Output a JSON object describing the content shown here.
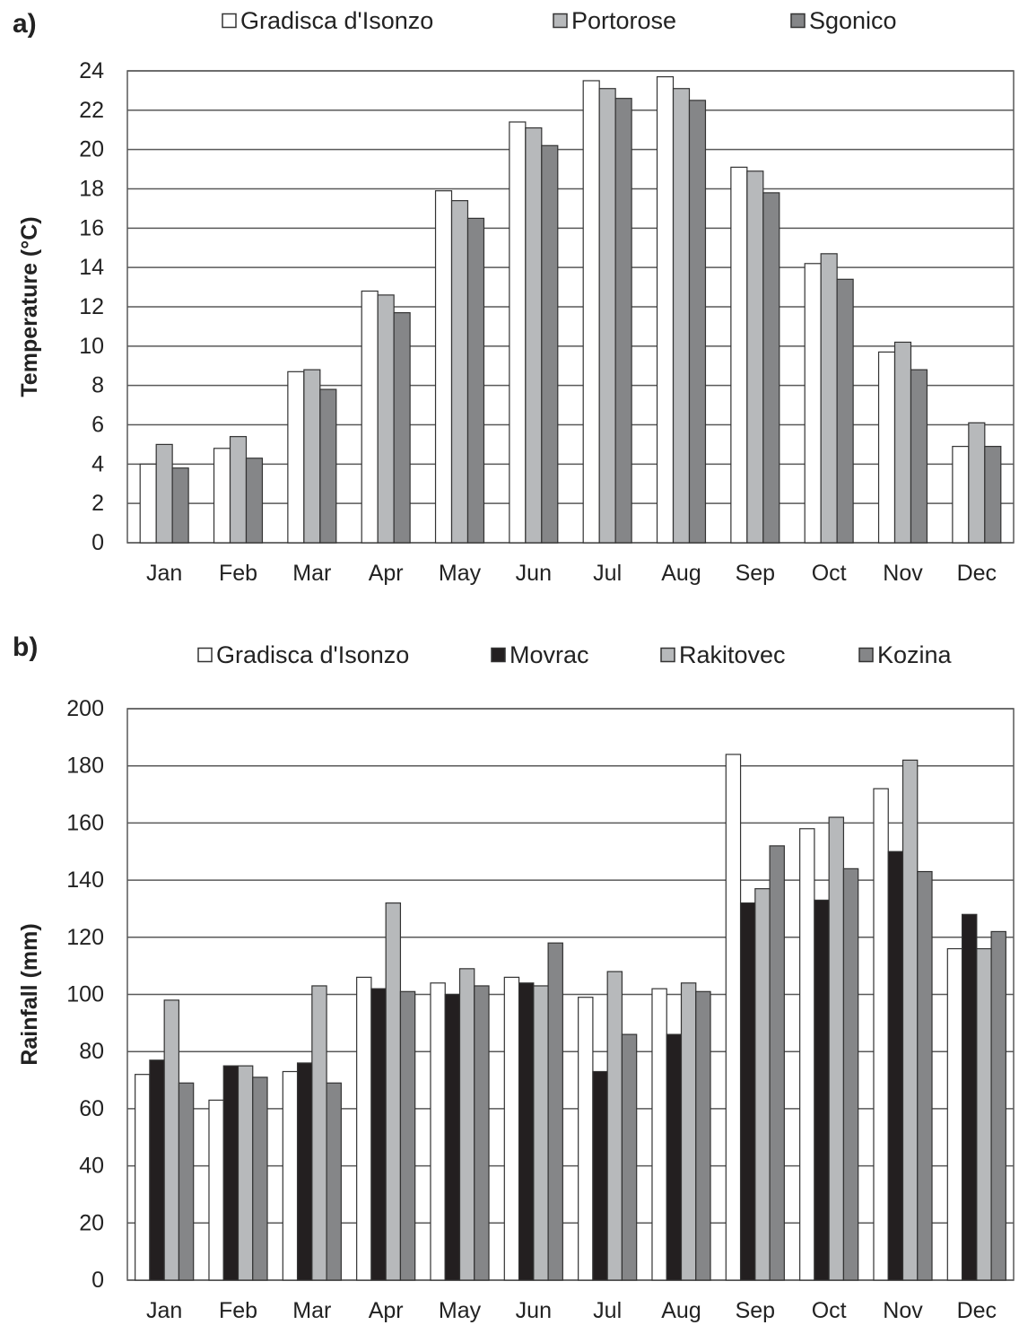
{
  "chart_data": [
    {
      "panel_label": "a)",
      "type": "bar",
      "categories": [
        "Jan",
        "Feb",
        "Mar",
        "Apr",
        "May",
        "Jun",
        "Jul",
        "Aug",
        "Sep",
        "Oct",
        "Nov",
        "Dec"
      ],
      "series": [
        {
          "name": "Gradisca d'Isonzo",
          "color": "#ffffff",
          "values": [
            4.0,
            4.8,
            8.7,
            12.8,
            17.9,
            21.4,
            23.5,
            23.7,
            19.1,
            14.2,
            9.7,
            4.9
          ]
        },
        {
          "name": "Portorose",
          "color": "#b7b9bb",
          "values": [
            5.0,
            5.4,
            8.8,
            12.6,
            17.4,
            21.1,
            23.1,
            23.1,
            18.9,
            14.7,
            10.2,
            6.1
          ]
        },
        {
          "name": "Sgonico",
          "color": "#858688",
          "values": [
            3.8,
            4.3,
            7.8,
            11.7,
            16.5,
            20.2,
            22.6,
            22.5,
            17.8,
            13.4,
            8.8,
            4.9
          ]
        }
      ],
      "xlabel": "",
      "ylabel": "Temperature (°C)",
      "ylim": [
        0,
        24
      ],
      "yticks": [
        0,
        2,
        4,
        6,
        8,
        10,
        12,
        14,
        16,
        18,
        20,
        22,
        24
      ],
      "grid": true,
      "legend": "top"
    },
    {
      "panel_label": "b)",
      "type": "bar",
      "categories": [
        "Jan",
        "Feb",
        "Mar",
        "Apr",
        "May",
        "Jun",
        "Jul",
        "Aug",
        "Sep",
        "Oct",
        "Nov",
        "Dec"
      ],
      "series": [
        {
          "name": "Gradisca d'Isonzo",
          "color": "#ffffff",
          "values": [
            72,
            63,
            73,
            106,
            104,
            106,
            99,
            102,
            184,
            158,
            172,
            116
          ]
        },
        {
          "name": "Movrac",
          "color": "#231f20",
          "values": [
            77,
            75,
            76,
            102,
            100,
            104,
            73,
            86,
            132,
            133,
            150,
            128
          ]
        },
        {
          "name": "Rakitovec",
          "color": "#b7b9bb",
          "values": [
            98,
            75,
            103,
            132,
            109,
            103,
            108,
            104,
            137,
            162,
            182,
            116
          ]
        },
        {
          "name": "Kozina",
          "color": "#858688",
          "values": [
            69,
            71,
            69,
            101,
            103,
            118,
            86,
            101,
            152,
            144,
            143,
            122
          ]
        }
      ],
      "xlabel": "",
      "ylabel": "Rainfall (mm)",
      "ylim": [
        0,
        200
      ],
      "yticks": [
        0,
        20,
        40,
        60,
        80,
        100,
        120,
        140,
        160,
        180,
        200
      ],
      "grid": true,
      "legend": "top"
    }
  ],
  "colors": {
    "axis": "#595959",
    "grid": "#595959",
    "bar_outline": "#333333",
    "text": "#222222"
  }
}
